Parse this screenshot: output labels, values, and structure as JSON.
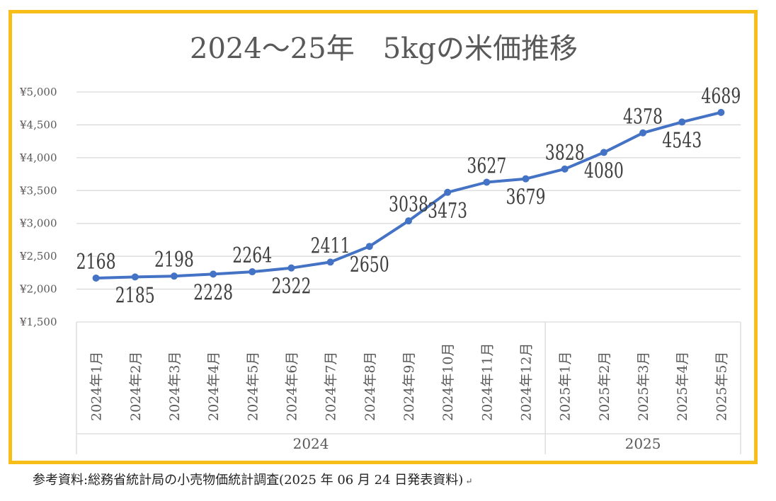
{
  "chart_data": {
    "type": "line",
    "title": "2024～25年　5kgの米価推移",
    "categories": [
      "2024年1月",
      "2024年2月",
      "2024年3月",
      "2024年4月",
      "2024年5月",
      "2024年6月",
      "2024年7月",
      "2024年8月",
      "2024年9月",
      "2024年10月",
      "2024年11月",
      "2024年12月",
      "2025年1月",
      "2025年2月",
      "2025年3月",
      "2025年4月",
      "2025年5月"
    ],
    "category_groups": [
      {
        "label": "2024",
        "count": 12
      },
      {
        "label": "2025",
        "count": 5
      }
    ],
    "series": [
      {
        "values": [
          2168,
          2185,
          2198,
          2228,
          2264,
          2322,
          2411,
          2650,
          3038,
          3473,
          3627,
          3679,
          3828,
          4080,
          4378,
          4543,
          4689
        ],
        "color": "#4472C4"
      }
    ],
    "data_label_positions": [
      "above",
      "below",
      "above",
      "below",
      "above",
      "below",
      "above",
      "below",
      "above",
      "below",
      "above",
      "below",
      "above",
      "below",
      "above",
      "below",
      "above"
    ],
    "ylim": [
      1500,
      5000
    ],
    "yticks": [
      1500,
      2000,
      2500,
      3000,
      3500,
      4000,
      4500,
      5000
    ],
    "ytick_labels": [
      "¥1,500",
      "¥2,000",
      "¥2,500",
      "¥3,000",
      "¥3,500",
      "¥4,000",
      "¥4,500",
      "¥5,000"
    ],
    "xlabel": "",
    "ylabel": "",
    "grid": true,
    "legend": "none",
    "colors": {
      "frame_border": "#F7BE1A",
      "gridline": "#D9D9D9",
      "line": "#4472C4",
      "text": "#595959",
      "data_label": "#404040"
    }
  },
  "source_note": "参考資料:総務省統計局の小売物価統計調査(2025 年 06 月 24 日発表資料)",
  "paragraph_mark": "↵"
}
